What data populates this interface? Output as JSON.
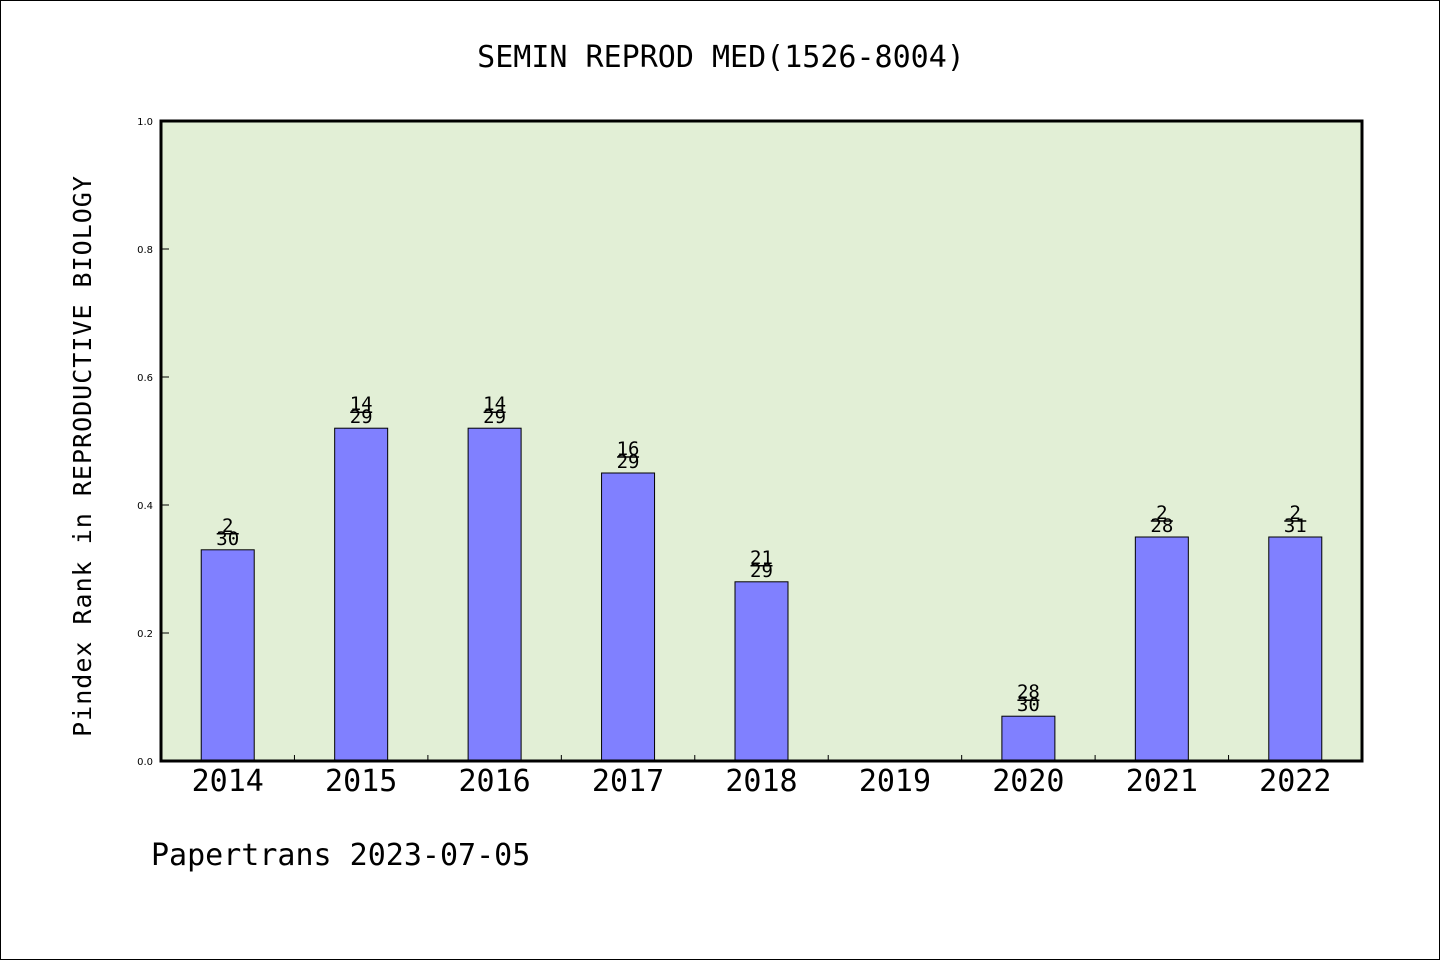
{
  "chart_data": {
    "type": "bar",
    "title": "SEMIN REPROD MED(1526-8004)",
    "ylabel": "Pindex Rank in REPRODUCTIVE BIOLOGY",
    "xlabel": "",
    "categories": [
      "2014",
      "2015",
      "2016",
      "2017",
      "2018",
      "2019",
      "2020",
      "2021",
      "2022"
    ],
    "values": [
      0.33,
      0.52,
      0.52,
      0.45,
      0.28,
      null,
      0.07,
      0.35,
      0.35
    ],
    "rank_labels": [
      {
        "rank": "2",
        "total": "30"
      },
      {
        "rank": "14",
        "total": "29"
      },
      {
        "rank": "14",
        "total": "29"
      },
      {
        "rank": "16",
        "total": "29"
      },
      {
        "rank": "21",
        "total": "29"
      },
      null,
      {
        "rank": "28",
        "total": "30"
      },
      {
        "rank": "2",
        "total": "28"
      },
      {
        "rank": "2",
        "total": "31"
      }
    ],
    "ylim": [
      0,
      1.0
    ],
    "yticks": [
      "0.0",
      "0.2",
      "0.4",
      "0.6",
      "0.8",
      "1.0"
    ],
    "colors": {
      "plot_bg": "#e2efd6",
      "bar": "#8080ff",
      "bar_edge": "#000000"
    },
    "grid": false,
    "footer": "Papertrans 2023-07-05"
  }
}
